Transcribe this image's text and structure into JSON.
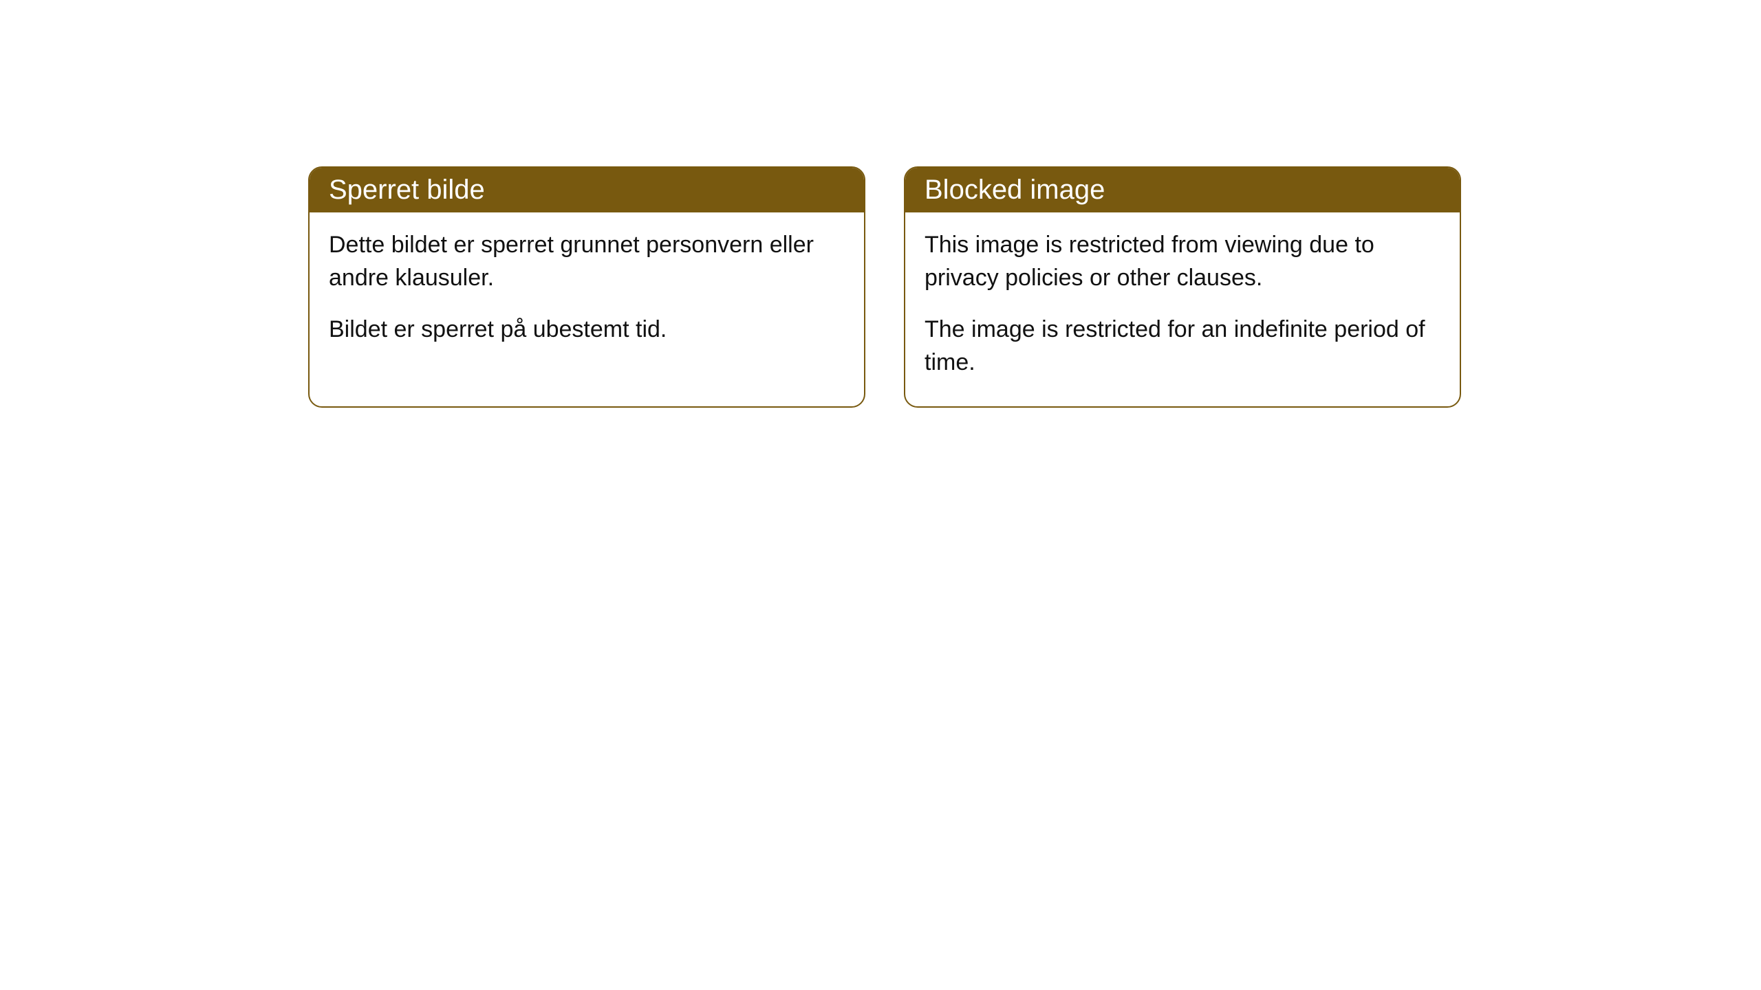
{
  "cards": [
    {
      "title": "Sperret bilde",
      "paragraph1": "Dette bildet er sperret grunnet personvern eller andre klausuler.",
      "paragraph2": "Bildet er sperret på ubestemt tid."
    },
    {
      "title": "Blocked image",
      "paragraph1": "This image is restricted from viewing due to privacy policies or other clauses.",
      "paragraph2": "The image is restricted for an indefinite period of time."
    }
  ],
  "styling": {
    "header_bg_color": "#78590f",
    "header_text_color": "#ffffff",
    "border_color": "#78590f",
    "body_bg_color": "#ffffff",
    "body_text_color": "#111111",
    "border_radius": 20,
    "header_fontsize": 40,
    "body_fontsize": 34
  }
}
